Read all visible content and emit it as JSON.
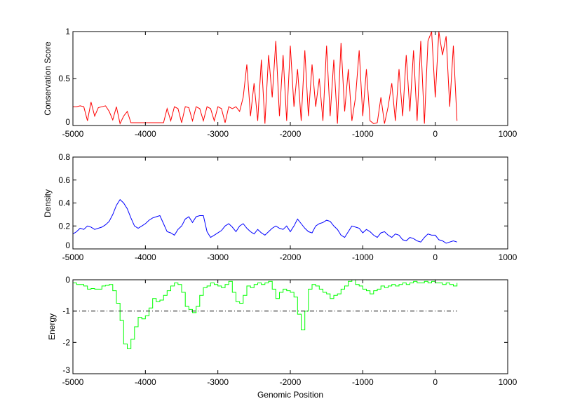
{
  "chart_data": [
    {
      "type": "line",
      "ylabel": "Conservation Score",
      "xlabel": "",
      "xlim": [
        -5000,
        1000
      ],
      "ylim": [
        0,
        1
      ],
      "xticks": [
        "-5000",
        "-4000",
        "-3000",
        "-2000",
        "-1000",
        "0",
        "1000"
      ],
      "yticks": [
        "0",
        "0.5",
        "1"
      ],
      "color": "#ff0000",
      "x_start": -5000,
      "x_step": 50,
      "values": [
        0.2,
        0.2,
        0.21,
        0.2,
        0.05,
        0.25,
        0.1,
        0.19,
        0.2,
        0.21,
        0.15,
        0.06,
        0.2,
        0.02,
        0.1,
        0.15,
        0.03,
        0.03,
        0.03,
        0.03,
        0.03,
        0.03,
        0.03,
        0.03,
        0.03,
        0.03,
        0.18,
        0.05,
        0.2,
        0.18,
        0.03,
        0.2,
        0.19,
        0.05,
        0.2,
        0.18,
        0.05,
        0.2,
        0.18,
        0.05,
        0.2,
        0.18,
        0.03,
        0.2,
        0.18,
        0.2,
        0.15,
        0.3,
        0.65,
        0.1,
        0.45,
        0.05,
        0.7,
        0.02,
        0.75,
        0.3,
        0.9,
        0.1,
        0.75,
        0.05,
        0.85,
        0.2,
        0.6,
        0.05,
        0.8,
        0.1,
        0.65,
        0.2,
        0.5,
        0.05,
        0.85,
        0.1,
        0.7,
        0.02,
        0.88,
        0.15,
        0.6,
        0.05,
        0.3,
        0.8,
        0.1,
        0.6,
        0.05,
        0.02,
        0.03,
        0.3,
        0.02,
        0.2,
        0.45,
        0.05,
        0.6,
        0.1,
        0.75,
        0.15,
        0.8,
        0.05,
        0.9,
        0.02,
        0.9,
        1.0,
        0.3,
        1.0,
        0.75,
        0.95,
        0.2,
        0.85,
        0.05
      ]
    },
    {
      "type": "line",
      "ylabel": "Density",
      "xlabel": "",
      "xlim": [
        -5000,
        1000
      ],
      "ylim": [
        0,
        0.8
      ],
      "xticks": [
        "-5000",
        "-4000",
        "-3000",
        "-2000",
        "-1000",
        "0",
        "1000"
      ],
      "yticks": [
        "0",
        "0.2",
        "0.4",
        "0.6",
        "0.8"
      ],
      "color": "#0000ff",
      "x_start": -5000,
      "x_step": 50,
      "values": [
        0.13,
        0.15,
        0.18,
        0.17,
        0.2,
        0.19,
        0.17,
        0.18,
        0.19,
        0.21,
        0.24,
        0.3,
        0.38,
        0.43,
        0.4,
        0.35,
        0.27,
        0.2,
        0.18,
        0.2,
        0.22,
        0.25,
        0.27,
        0.28,
        0.29,
        0.22,
        0.15,
        0.14,
        0.12,
        0.17,
        0.2,
        0.26,
        0.28,
        0.23,
        0.28,
        0.29,
        0.29,
        0.15,
        0.1,
        0.12,
        0.14,
        0.16,
        0.2,
        0.22,
        0.19,
        0.15,
        0.2,
        0.22,
        0.18,
        0.15,
        0.13,
        0.17,
        0.14,
        0.12,
        0.15,
        0.18,
        0.2,
        0.18,
        0.17,
        0.2,
        0.15,
        0.2,
        0.26,
        0.22,
        0.18,
        0.15,
        0.14,
        0.2,
        0.22,
        0.23,
        0.25,
        0.24,
        0.2,
        0.17,
        0.12,
        0.1,
        0.15,
        0.2,
        0.19,
        0.18,
        0.14,
        0.17,
        0.15,
        0.12,
        0.1,
        0.14,
        0.15,
        0.12,
        0.1,
        0.13,
        0.12,
        0.08,
        0.07,
        0.1,
        0.09,
        0.07,
        0.06,
        0.1,
        0.13,
        0.12,
        0.12,
        0.08,
        0.07,
        0.05,
        0.06,
        0.07,
        0.06
      ]
    },
    {
      "type": "line",
      "ylabel": "Energy",
      "xlabel": "Genomic Position",
      "xlim": [
        -5000,
        1000
      ],
      "ylim": [
        -3,
        0
      ],
      "xticks": [
        "-5000",
        "-4000",
        "-3000",
        "-2000",
        "-1000",
        "0",
        "1000"
      ],
      "yticks": [
        "-3",
        "-2",
        "-1",
        "0"
      ],
      "color": "#00ff00",
      "threshold": {
        "y": -1,
        "x_range": [
          -5000,
          300
        ],
        "color": "#000000",
        "style": "dash-dot"
      },
      "x_start": -5000,
      "x_step": 50,
      "values": [
        -0.1,
        -0.15,
        -0.15,
        -0.2,
        -0.3,
        -0.28,
        -0.3,
        -0.3,
        -0.2,
        -0.18,
        -0.15,
        -0.35,
        -0.75,
        -1.3,
        -2.05,
        -2.2,
        -1.9,
        -1.5,
        -1.2,
        -1.25,
        -1.15,
        -0.9,
        -0.6,
        -0.7,
        -0.65,
        -0.5,
        -0.35,
        -0.2,
        -0.1,
        -0.15,
        -0.4,
        -0.85,
        -0.95,
        -1.05,
        -0.85,
        -0.5,
        -0.25,
        -0.2,
        -0.1,
        -0.15,
        -0.2,
        -0.25,
        -0.15,
        -0.05,
        -0.4,
        -0.7,
        -0.75,
        -0.5,
        -0.2,
        -0.25,
        -0.15,
        -0.1,
        -0.15,
        -0.1,
        -0.05,
        -0.3,
        -0.6,
        -0.4,
        -0.3,
        -0.35,
        -0.4,
        -0.55,
        -1.1,
        -1.6,
        -1.0,
        -0.3,
        -0.15,
        -0.2,
        -0.3,
        -0.4,
        -0.45,
        -0.6,
        -0.5,
        -0.45,
        -0.3,
        -0.2,
        -0.05,
        0,
        -0.15,
        -0.2,
        -0.3,
        -0.35,
        -0.45,
        -0.35,
        -0.3,
        -0.2,
        -0.25,
        -0.2,
        -0.15,
        -0.2,
        -0.15,
        -0.1,
        -0.15,
        -0.1,
        -0.05,
        -0.1,
        -0.1,
        -0.05,
        -0.1,
        -0.05,
        -0.1,
        -0.1,
        -0.15,
        -0.1,
        -0.15,
        -0.2,
        -0.1
      ]
    }
  ]
}
